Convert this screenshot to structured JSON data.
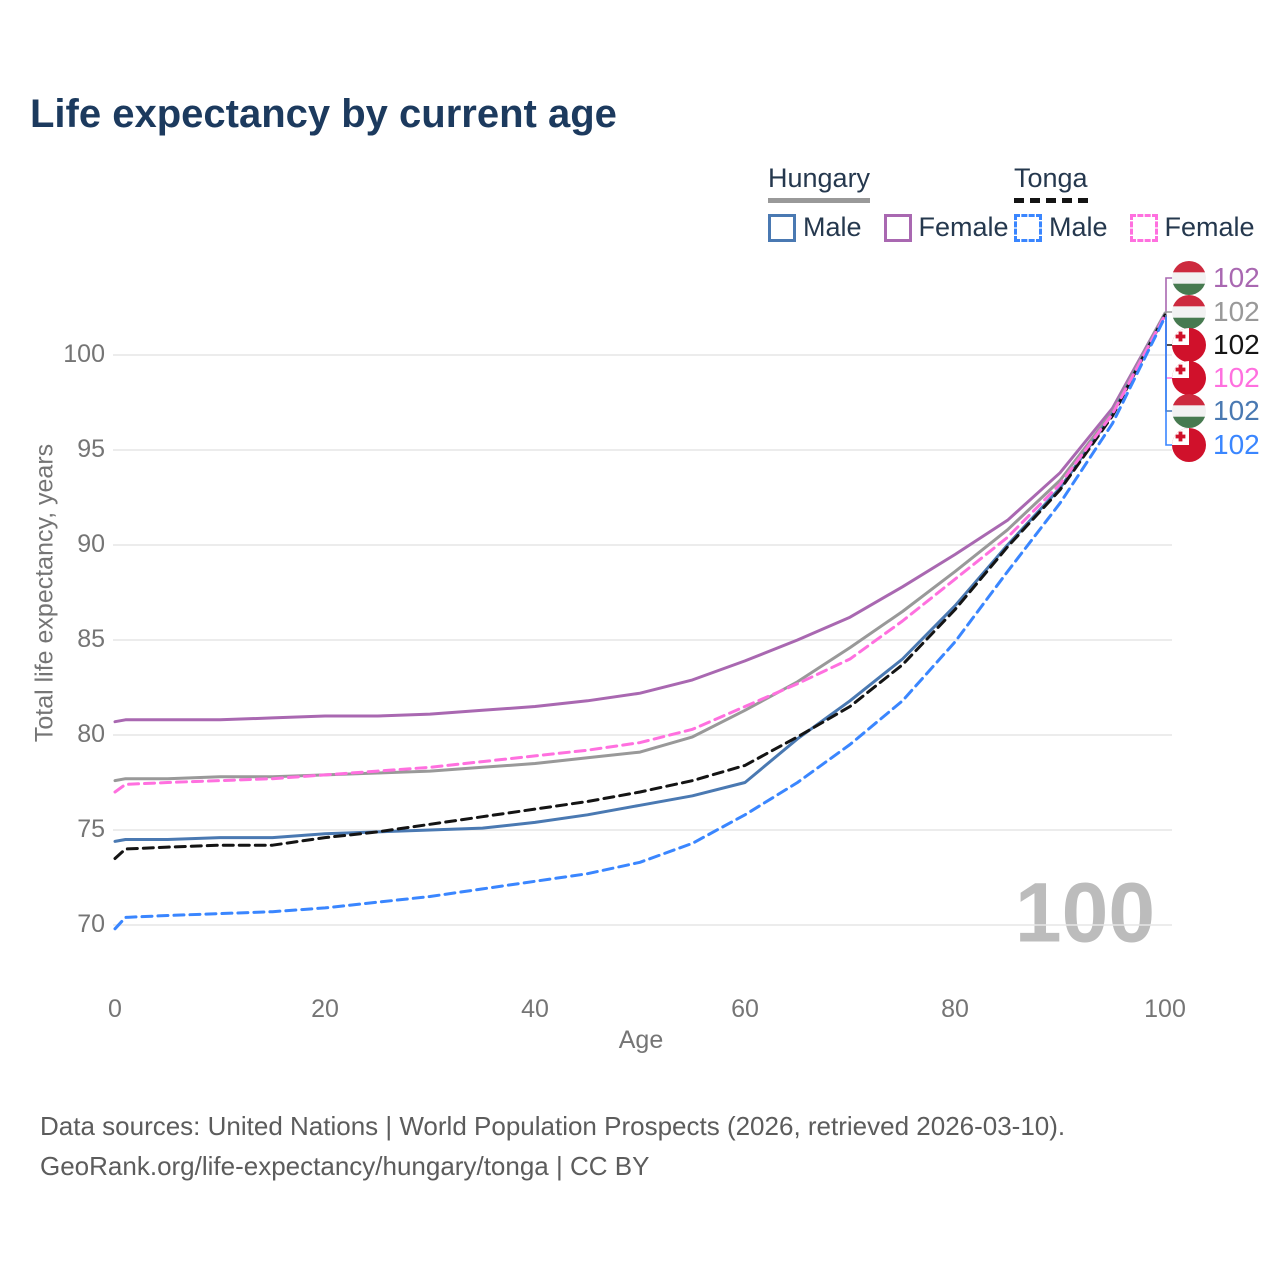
{
  "title": "Life expectancy by current age",
  "legend": {
    "groups": [
      {
        "label": "Hungary",
        "line_color": "#999999",
        "line_style": "solid",
        "items": [
          {
            "label": "Male",
            "color": "#4a79b2",
            "style": "solid"
          },
          {
            "label": "Female",
            "color": "#a968b1",
            "style": "solid"
          }
        ]
      },
      {
        "label": "Tonga",
        "line_color": "#141414",
        "line_style": "dashed",
        "items": [
          {
            "label": "Male",
            "color": "#3a86ff",
            "style": "dashed"
          },
          {
            "label": "Female",
            "color": "#ff70df",
            "style": "dashed"
          }
        ]
      }
    ]
  },
  "watermark": "100",
  "footer": {
    "line1": "Data sources: United Nations | World Population Prospects (2026, retrieved 2026-03-10).",
    "line2": "GeoRank.org/life-expectancy/hungary/tonga | CC BY"
  },
  "chart_data": {
    "type": "line",
    "title": "Life expectancy by current age",
    "xlabel": "Age",
    "ylabel": "Total life expectancy, years",
    "xlim": [
      0,
      100
    ],
    "ylim": [
      68.5,
      103.5
    ],
    "x_ticks": [
      0,
      20,
      40,
      60,
      80,
      100
    ],
    "y_ticks": [
      70,
      75,
      80,
      85,
      90,
      95,
      100
    ],
    "grid": "horizontal",
    "legend_position": "top-right",
    "x": [
      0,
      1,
      5,
      10,
      15,
      20,
      25,
      30,
      35,
      40,
      45,
      50,
      55,
      60,
      65,
      70,
      75,
      80,
      85,
      90,
      95,
      100
    ],
    "series": [
      {
        "name": "Hungary Female",
        "country": "Hungary",
        "sex": "Female",
        "color": "#a968b1",
        "dashed": false,
        "flag": "hungary",
        "end_label": "102",
        "values": [
          80.7,
          80.8,
          80.8,
          80.8,
          80.9,
          81.0,
          81.0,
          81.1,
          81.3,
          81.5,
          81.8,
          82.2,
          82.9,
          83.9,
          85.0,
          86.2,
          87.8,
          89.5,
          91.3,
          93.8,
          97.2,
          102.2
        ]
      },
      {
        "name": "Hungary",
        "country": "Hungary",
        "sex": "All",
        "color": "#999999",
        "dashed": false,
        "flag": "hungary",
        "end_label": "102",
        "values": [
          77.6,
          77.7,
          77.7,
          77.8,
          77.8,
          77.9,
          78.0,
          78.1,
          78.3,
          78.5,
          78.8,
          79.1,
          79.9,
          81.3,
          82.8,
          84.6,
          86.5,
          88.6,
          90.8,
          93.4,
          97.0,
          102.2
        ]
      },
      {
        "name": "Tonga",
        "country": "Tonga",
        "sex": "All",
        "color": "#141414",
        "dashed": true,
        "flag": "tonga",
        "end_label": "102",
        "values": [
          73.5,
          74.0,
          74.1,
          74.2,
          74.2,
          74.6,
          74.9,
          75.3,
          75.7,
          76.1,
          76.5,
          77.0,
          77.6,
          78.4,
          79.9,
          81.5,
          83.7,
          86.6,
          89.9,
          92.9,
          96.8,
          102.1
        ]
      },
      {
        "name": "Tonga Female",
        "country": "Tonga",
        "sex": "Female",
        "color": "#ff70df",
        "dashed": true,
        "flag": "tonga",
        "end_label": "102",
        "values": [
          77.0,
          77.4,
          77.5,
          77.6,
          77.7,
          77.9,
          78.1,
          78.3,
          78.6,
          78.9,
          79.2,
          79.6,
          80.3,
          81.5,
          82.7,
          84.0,
          86.0,
          88.2,
          90.4,
          93.2,
          96.9,
          102.1
        ]
      },
      {
        "name": "Hungary Male",
        "country": "Hungary",
        "sex": "Male",
        "color": "#4a79b2",
        "dashed": false,
        "flag": "hungary",
        "end_label": "102",
        "values": [
          74.4,
          74.5,
          74.5,
          74.6,
          74.6,
          74.8,
          74.9,
          75.0,
          75.1,
          75.4,
          75.8,
          76.3,
          76.8,
          77.5,
          79.8,
          81.8,
          84.0,
          86.8,
          90.0,
          93.0,
          96.9,
          102.1
        ]
      },
      {
        "name": "Tonga Male",
        "country": "Tonga",
        "sex": "Male",
        "color": "#3a86ff",
        "dashed": true,
        "flag": "tonga",
        "end_label": "102",
        "values": [
          69.8,
          70.4,
          70.5,
          70.6,
          70.7,
          70.9,
          71.2,
          71.5,
          71.9,
          72.3,
          72.7,
          73.3,
          74.3,
          75.8,
          77.5,
          79.5,
          81.8,
          84.9,
          88.6,
          92.2,
          96.4,
          102.0
        ]
      }
    ]
  }
}
